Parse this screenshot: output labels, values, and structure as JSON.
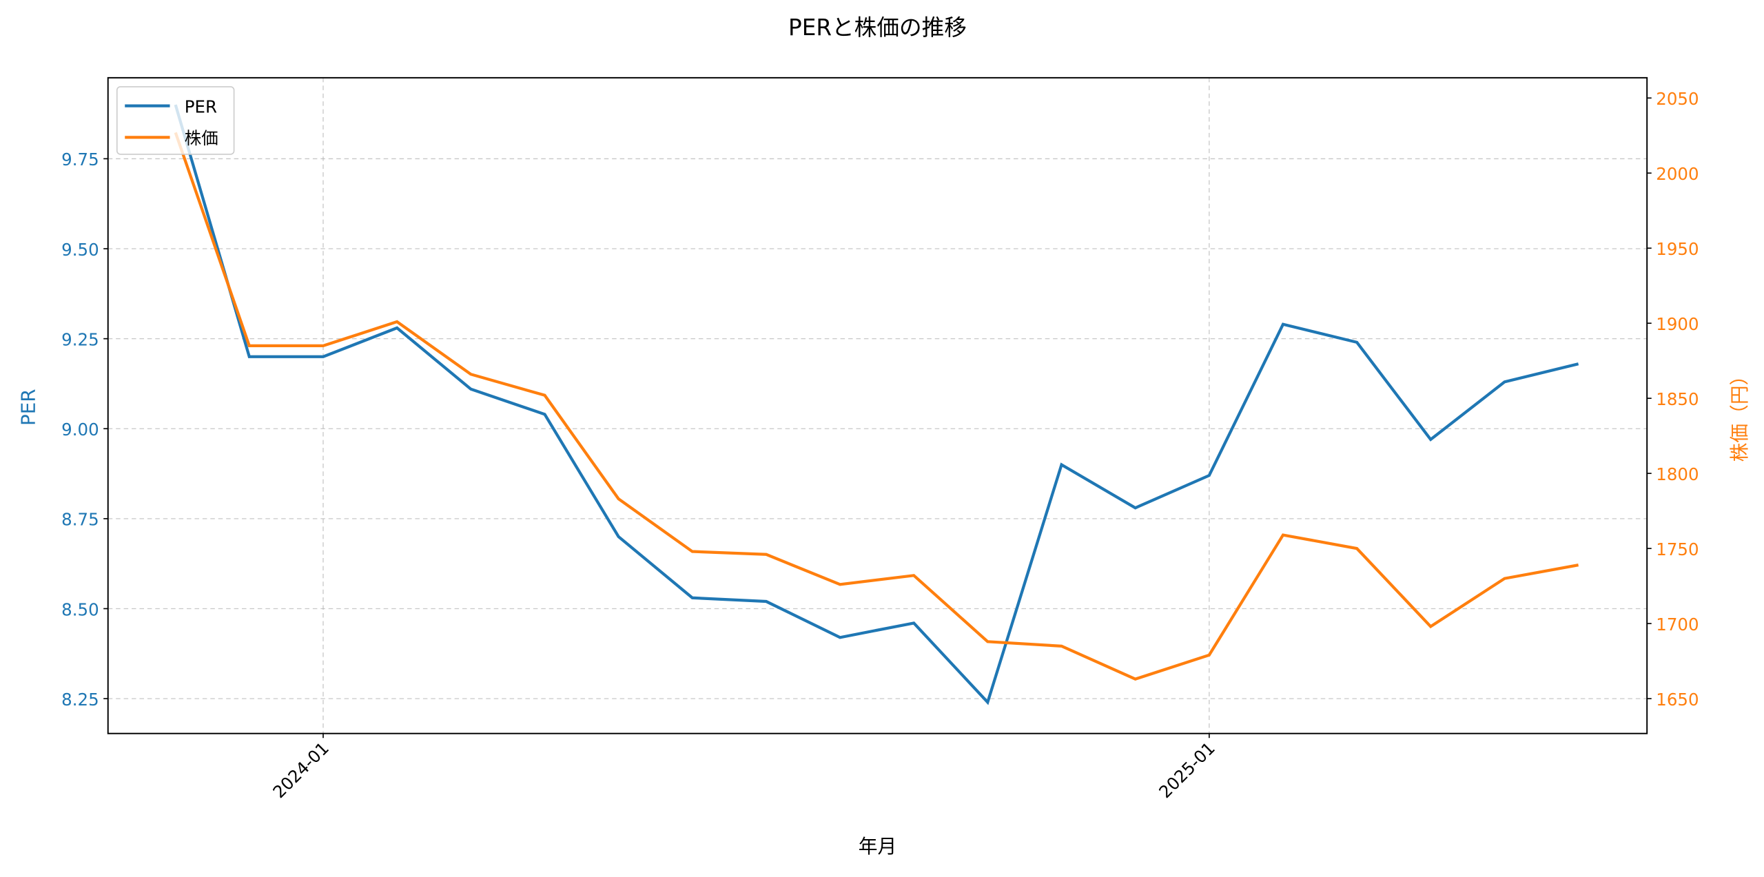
{
  "chart_data": {
    "type": "line",
    "title": "PERと株価の推移",
    "xlabel": "年月",
    "ylabel": "PER",
    "ylabel_right": "株価（円）",
    "x": [
      "2023-11",
      "2023-12",
      "2024-01",
      "2024-02",
      "2024-03",
      "2024-04",
      "2024-05",
      "2024-06",
      "2024-07",
      "2024-08",
      "2024-09",
      "2024-10",
      "2024-11",
      "2024-12",
      "2025-01",
      "2025-02",
      "2025-03",
      "2025-04",
      "2025-05",
      "2025-06"
    ],
    "x_tick_labels": [
      "2024-01",
      "2025-01"
    ],
    "series": [
      {
        "name": "PER",
        "axis": "left",
        "color": "#1f77b4",
        "values": [
          9.9,
          9.2,
          9.2,
          9.28,
          9.11,
          9.04,
          8.7,
          8.53,
          8.52,
          8.42,
          8.46,
          8.24,
          8.9,
          8.78,
          8.87,
          9.29,
          9.24,
          8.97,
          9.13,
          9.18
        ]
      },
      {
        "name": "株価",
        "axis": "right",
        "color": "#ff7f0e",
        "values": [
          2027,
          1885,
          1885,
          1901,
          1866,
          1852,
          1783,
          1748,
          1746,
          1726,
          1732,
          1688,
          1685,
          1663,
          1679,
          1759,
          1750,
          1698,
          1730,
          1739
        ]
      }
    ],
    "ylim": [
      8.155,
      9.97
    ],
    "ylim_right": [
      1627,
      2062
    ],
    "y_ticks": [
      "8.25",
      "8.50",
      "8.75",
      "9.00",
      "9.25",
      "9.50",
      "9.75"
    ],
    "y_ticks_right": [
      "1650",
      "1700",
      "1750",
      "1800",
      "1850",
      "1900",
      "1950",
      "2000",
      "2050"
    ],
    "grid": true,
    "legend_position": "upper left"
  }
}
